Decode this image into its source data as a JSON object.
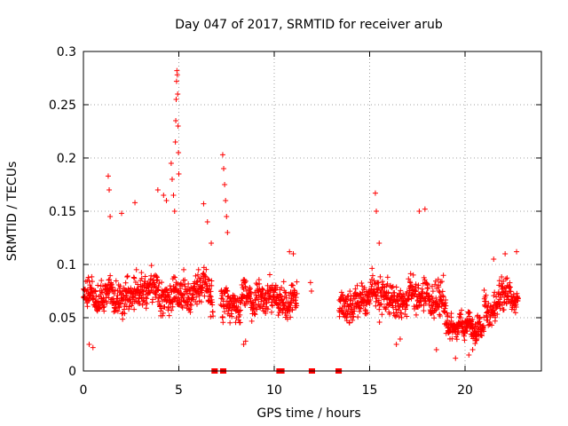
{
  "chart_data": {
    "type": "scatter",
    "title": "Day 047 of 2017, SRMTID for receiver arub",
    "xlabel": "GPS time / hours",
    "ylabel": "SRMTID / TECUs",
    "xlim": [
      0,
      24
    ],
    "ylim": [
      0,
      0.3
    ],
    "xticks": [
      0,
      5,
      10,
      15,
      20
    ],
    "xtick_labels": [
      "0",
      "5",
      "10",
      "15",
      "20"
    ],
    "yticks": [
      0,
      0.05,
      0.1,
      0.15,
      0.2,
      0.25,
      0.3
    ],
    "ytick_labels": [
      "0",
      "0.05",
      "0.1",
      "0.15",
      "0.2",
      "0.25",
      "0.3"
    ],
    "grid": true,
    "legend": "none",
    "marker": "plus",
    "color": "#ff0000",
    "series": [
      {
        "name": "SRMTID",
        "segments": [
          {
            "start": 0.0,
            "end": 6.8,
            "base": 0.072,
            "spread": 0.022,
            "step": 0.012
          },
          {
            "start": 7.2,
            "end": 11.2,
            "base": 0.068,
            "spread": 0.021,
            "step": 0.012
          },
          {
            "start": 13.4,
            "end": 19.0,
            "base": 0.066,
            "spread": 0.022,
            "step": 0.012
          },
          {
            "start": 19.0,
            "end": 21.0,
            "base": 0.042,
            "spread": 0.012,
            "step": 0.01
          },
          {
            "start": 21.0,
            "end": 22.8,
            "base": 0.068,
            "spread": 0.02,
            "step": 0.012
          }
        ],
        "excursions": [
          {
            "x": 0.3,
            "y": 0.025
          },
          {
            "x": 0.5,
            "y": 0.022
          },
          {
            "x": 1.3,
            "y": 0.183
          },
          {
            "x": 1.35,
            "y": 0.17
          },
          {
            "x": 1.4,
            "y": 0.145
          },
          {
            "x": 2.0,
            "y": 0.148
          },
          {
            "x": 2.7,
            "y": 0.158
          },
          {
            "x": 3.9,
            "y": 0.17
          },
          {
            "x": 4.2,
            "y": 0.165
          },
          {
            "x": 4.35,
            "y": 0.16
          },
          {
            "x": 4.6,
            "y": 0.195
          },
          {
            "x": 4.65,
            "y": 0.18
          },
          {
            "x": 4.72,
            "y": 0.165
          },
          {
            "x": 4.78,
            "y": 0.15
          },
          {
            "x": 4.82,
            "y": 0.215
          },
          {
            "x": 4.84,
            "y": 0.235
          },
          {
            "x": 4.86,
            "y": 0.255
          },
          {
            "x": 4.88,
            "y": 0.272
          },
          {
            "x": 4.9,
            "y": 0.282
          },
          {
            "x": 4.92,
            "y": 0.278
          },
          {
            "x": 4.94,
            "y": 0.26
          },
          {
            "x": 4.96,
            "y": 0.23
          },
          {
            "x": 4.98,
            "y": 0.205
          },
          {
            "x": 5.0,
            "y": 0.185
          },
          {
            "x": 6.3,
            "y": 0.157
          },
          {
            "x": 6.5,
            "y": 0.14
          },
          {
            "x": 6.7,
            "y": 0.12
          },
          {
            "x": 7.3,
            "y": 0.203
          },
          {
            "x": 7.35,
            "y": 0.19
          },
          {
            "x": 7.4,
            "y": 0.175
          },
          {
            "x": 7.45,
            "y": 0.16
          },
          {
            "x": 7.5,
            "y": 0.145
          },
          {
            "x": 7.55,
            "y": 0.13
          },
          {
            "x": 8.4,
            "y": 0.025
          },
          {
            "x": 8.5,
            "y": 0.028
          },
          {
            "x": 10.8,
            "y": 0.112
          },
          {
            "x": 11.0,
            "y": 0.11
          },
          {
            "x": 11.9,
            "y": 0.083
          },
          {
            "x": 11.95,
            "y": 0.075
          },
          {
            "x": 15.3,
            "y": 0.167
          },
          {
            "x": 15.35,
            "y": 0.15
          },
          {
            "x": 15.5,
            "y": 0.12
          },
          {
            "x": 17.6,
            "y": 0.15
          },
          {
            "x": 17.9,
            "y": 0.152
          },
          {
            "x": 16.4,
            "y": 0.025
          },
          {
            "x": 16.6,
            "y": 0.03
          },
          {
            "x": 18.5,
            "y": 0.02
          },
          {
            "x": 19.5,
            "y": 0.012
          },
          {
            "x": 20.2,
            "y": 0.015
          },
          {
            "x": 20.4,
            "y": 0.02
          },
          {
            "x": 21.5,
            "y": 0.105
          },
          {
            "x": 22.1,
            "y": 0.11
          },
          {
            "x": 22.7,
            "y": 0.112
          }
        ],
        "zero_marks": [
          6.85,
          6.9,
          7.3,
          7.35,
          10.25,
          10.3,
          10.35,
          10.4,
          11.95,
          12.0,
          13.35,
          13.4
        ]
      }
    ]
  }
}
